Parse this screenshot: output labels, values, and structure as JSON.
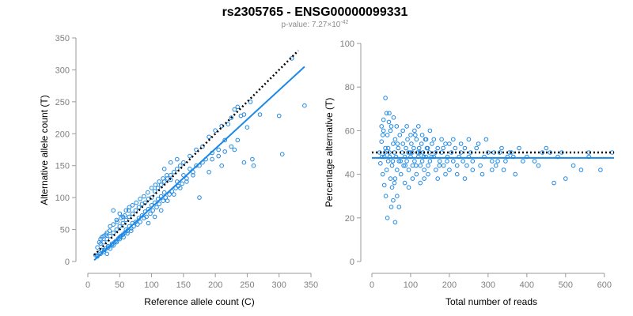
{
  "figure": {
    "title": "rs2305765 - ENSG00000099331",
    "subtitle_prefix": "p-value: 7.27×10",
    "subtitle_exponent": "-42"
  },
  "colors": {
    "points": "#1e88e5",
    "fit": "#1e88e5",
    "reference": "#000000",
    "axis": "#9a9a9a"
  },
  "chart_data": [
    {
      "type": "scatter",
      "name": "allele-count",
      "xlabel": "Reference allele count (C)",
      "ylabel": "Alternative allele count (T)",
      "xlim": [
        0,
        350
      ],
      "ylim": [
        0,
        350
      ],
      "xticks": [
        0,
        50,
        100,
        150,
        200,
        250,
        300,
        350
      ],
      "yticks": [
        0,
        50,
        100,
        150,
        200,
        250,
        300,
        350
      ],
      "regression_line": {
        "x": [
          10,
          340
        ],
        "y": [
          2,
          305
        ]
      },
      "reference_line": {
        "x": [
          10,
          330
        ],
        "y": [
          10,
          330
        ],
        "style": "dotted"
      },
      "points": [
        [
          12,
          10
        ],
        [
          15,
          22
        ],
        [
          18,
          14
        ],
        [
          20,
          28
        ],
        [
          22,
          18
        ],
        [
          25,
          30
        ],
        [
          28,
          20
        ],
        [
          30,
          35
        ],
        [
          32,
          24
        ],
        [
          35,
          40
        ],
        [
          38,
          28
        ],
        [
          40,
          45
        ],
        [
          42,
          30
        ],
        [
          45,
          50
        ],
        [
          48,
          36
        ],
        [
          50,
          55
        ],
        [
          52,
          40
        ],
        [
          55,
          60
        ],
        [
          58,
          45
        ],
        [
          60,
          65
        ],
        [
          62,
          48
        ],
        [
          65,
          70
        ],
        [
          68,
          52
        ],
        [
          70,
          75
        ],
        [
          72,
          55
        ],
        [
          75,
          80
        ],
        [
          78,
          58
        ],
        [
          80,
          85
        ],
        [
          82,
          62
        ],
        [
          85,
          90
        ],
        [
          88,
          68
        ],
        [
          90,
          92
        ],
        [
          92,
          70
        ],
        [
          95,
          98
        ],
        [
          98,
          75
        ],
        [
          100,
          100
        ],
        [
          102,
          80
        ],
        [
          105,
          110
        ],
        [
          108,
          85
        ],
        [
          110,
          115
        ],
        [
          112,
          90
        ],
        [
          115,
          120
        ],
        [
          118,
          95
        ],
        [
          120,
          125
        ],
        [
          122,
          100
        ],
        [
          125,
          130
        ],
        [
          128,
          105
        ],
        [
          130,
          135
        ],
        [
          132,
          110
        ],
        [
          135,
          140
        ],
        [
          138,
          115
        ],
        [
          140,
          145
        ],
        [
          142,
          118
        ],
        [
          145,
          150
        ],
        [
          148,
          122
        ],
        [
          150,
          155
        ],
        [
          155,
          130
        ],
        [
          160,
          165
        ],
        [
          165,
          140
        ],
        [
          170,
          175
        ],
        [
          175,
          150
        ],
        [
          180,
          180
        ],
        [
          185,
          160
        ],
        [
          190,
          195
        ],
        [
          195,
          170
        ],
        [
          200,
          205
        ],
        [
          205,
          175
        ],
        [
          210,
          212
        ],
        [
          215,
          190
        ],
        [
          220,
          215
        ],
        [
          225,
          225
        ],
        [
          230,
          238
        ],
        [
          235,
          242
        ],
        [
          240,
          228
        ],
        [
          245,
          230
        ],
        [
          250,
          210
        ],
        [
          255,
          250
        ],
        [
          260,
          150
        ],
        [
          270,
          230
        ],
        [
          300,
          228
        ],
        [
          305,
          168
        ],
        [
          320,
          318
        ],
        [
          340,
          244
        ],
        [
          230,
          175
        ],
        [
          245,
          155
        ],
        [
          258,
          160
        ],
        [
          210,
          150
        ],
        [
          175,
          100
        ],
        [
          190,
          140
        ],
        [
          165,
          135
        ],
        [
          25,
          15
        ],
        [
          30,
          12
        ],
        [
          35,
          20
        ],
        [
          40,
          25
        ],
        [
          45,
          30
        ],
        [
          50,
          38
        ],
        [
          55,
          42
        ],
        [
          60,
          50
        ],
        [
          65,
          55
        ],
        [
          70,
          60
        ],
        [
          75,
          62
        ],
        [
          80,
          68
        ],
        [
          85,
          72
        ],
        [
          90,
          78
        ],
        [
          95,
          82
        ],
        [
          100,
          88
        ],
        [
          105,
          92
        ],
        [
          110,
          98
        ],
        [
          115,
          102
        ],
        [
          120,
          108
        ],
        [
          18,
          30
        ],
        [
          22,
          38
        ],
        [
          28,
          42
        ],
        [
          34,
          48
        ],
        [
          40,
          58
        ],
        [
          46,
          62
        ],
        [
          52,
          68
        ],
        [
          58,
          72
        ],
        [
          64,
          80
        ],
        [
          70,
          88
        ],
        [
          76,
          92
        ],
        [
          82,
          98
        ],
        [
          88,
          102
        ],
        [
          94,
          108
        ],
        [
          100,
          115
        ],
        [
          106,
          120
        ],
        [
          112,
          125
        ],
        [
          118,
          130
        ],
        [
          124,
          135
        ],
        [
          130,
          128
        ],
        [
          15,
          8
        ],
        [
          20,
          12
        ],
        [
          26,
          18
        ],
        [
          32,
          22
        ],
        [
          38,
          26
        ],
        [
          44,
          32
        ],
        [
          50,
          35
        ],
        [
          56,
          38
        ],
        [
          62,
          44
        ],
        [
          68,
          48
        ],
        [
          140,
          125
        ],
        [
          150,
          135
        ],
        [
          160,
          145
        ],
        [
          170,
          150
        ],
        [
          180,
          155
        ],
        [
          195,
          160
        ],
        [
          205,
          165
        ],
        [
          215,
          172
        ],
        [
          225,
          180
        ],
        [
          235,
          190
        ],
        [
          40,
          80
        ],
        [
          50,
          75
        ],
        [
          60,
          80
        ],
        [
          45,
          65
        ],
        [
          35,
          55
        ],
        [
          30,
          45
        ],
        [
          25,
          40
        ],
        [
          20,
          35
        ],
        [
          55,
          70
        ],
        [
          65,
          85
        ],
        [
          95,
          60
        ],
        [
          105,
          70
        ],
        [
          115,
          80
        ],
        [
          125,
          95
        ],
        [
          135,
          105
        ],
        [
          145,
          115
        ],
        [
          155,
          125
        ],
        [
          120,
          145
        ],
        [
          130,
          155
        ],
        [
          140,
          160
        ]
      ]
    },
    {
      "type": "scatter",
      "name": "percentage-alternative",
      "xlabel": "Total number of reads",
      "ylabel": "Percentage alternative (T)",
      "xlim": [
        0,
        625
      ],
      "ylim": [
        0,
        100
      ],
      "xticks": [
        0,
        100,
        200,
        300,
        400,
        500,
        600
      ],
      "yticks": [
        0,
        20,
        40,
        60,
        80,
        100
      ],
      "fit_line": {
        "x": [
          0,
          625
        ],
        "y": [
          47.5,
          47.5
        ]
      },
      "reference_line": {
        "x": [
          0,
          625
        ],
        "y": [
          50,
          50
        ],
        "style": "dotted"
      },
      "points": [
        [
          20,
          50
        ],
        [
          22,
          45
        ],
        [
          25,
          55
        ],
        [
          28,
          40
        ],
        [
          30,
          60
        ],
        [
          32,
          48
        ],
        [
          35,
          52
        ],
        [
          38,
          42
        ],
        [
          40,
          58
        ],
        [
          42,
          46
        ],
        [
          45,
          50
        ],
        [
          48,
          38
        ],
        [
          50,
          62
        ],
        [
          52,
          44
        ],
        [
          55,
          54
        ],
        [
          58,
          36
        ],
        [
          60,
          56
        ],
        [
          62,
          48
        ],
        [
          65,
          42
        ],
        [
          68,
          52
        ],
        [
          70,
          46
        ],
        [
          72,
          58
        ],
        [
          75,
          40
        ],
        [
          78,
          50
        ],
        [
          80,
          54
        ],
        [
          82,
          44
        ],
        [
          85,
          48
        ],
        [
          88,
          52
        ],
        [
          90,
          46
        ],
        [
          92,
          56
        ],
        [
          95,
          42
        ],
        [
          98,
          50
        ],
        [
          100,
          48
        ],
        [
          102,
          54
        ],
        [
          105,
          44
        ],
        [
          108,
          52
        ],
        [
          110,
          46
        ],
        [
          112,
          58
        ],
        [
          115,
          40
        ],
        [
          118,
          50
        ],
        [
          120,
          48
        ],
        [
          122,
          52
        ],
        [
          125,
          44
        ],
        [
          128,
          54
        ],
        [
          130,
          46
        ],
        [
          132,
          50
        ],
        [
          135,
          42
        ],
        [
          138,
          56
        ],
        [
          140,
          48
        ],
        [
          142,
          52
        ],
        [
          145,
          44
        ],
        [
          148,
          50
        ],
        [
          150,
          46
        ],
        [
          155,
          54
        ],
        [
          160,
          48
        ],
        [
          165,
          42
        ],
        [
          170,
          52
        ],
        [
          175,
          46
        ],
        [
          180,
          50
        ],
        [
          185,
          44
        ],
        [
          190,
          54
        ],
        [
          195,
          48
        ],
        [
          200,
          42
        ],
        [
          205,
          50
        ],
        [
          210,
          46
        ],
        [
          215,
          52
        ],
        [
          220,
          44
        ],
        [
          225,
          48
        ],
        [
          230,
          50
        ],
        [
          235,
          46
        ],
        [
          240,
          52
        ],
        [
          245,
          44
        ],
        [
          250,
          48
        ],
        [
          255,
          50
        ],
        [
          260,
          46
        ],
        [
          270,
          52
        ],
        [
          280,
          44
        ],
        [
          290,
          48
        ],
        [
          300,
          50
        ],
        [
          310,
          46
        ],
        [
          320,
          44
        ],
        [
          330,
          50
        ],
        [
          340,
          42
        ],
        [
          350,
          48
        ],
        [
          360,
          50
        ],
        [
          370,
          40
        ],
        [
          380,
          52
        ],
        [
          390,
          46
        ],
        [
          400,
          48
        ],
        [
          420,
          46
        ],
        [
          430,
          44
        ],
        [
          450,
          52
        ],
        [
          460,
          50
        ],
        [
          480,
          48
        ],
        [
          500,
          38
        ],
        [
          520,
          44
        ],
        [
          540,
          42
        ],
        [
          560,
          48
        ],
        [
          590,
          42
        ],
        [
          620,
          50
        ],
        [
          35,
          75
        ],
        [
          45,
          68
        ],
        [
          30,
          65
        ],
        [
          55,
          28
        ],
        [
          60,
          18
        ],
        [
          40,
          20
        ],
        [
          50,
          25
        ],
        [
          65,
          30
        ],
        [
          70,
          25
        ],
        [
          38,
          68
        ],
        [
          25,
          62
        ],
        [
          28,
          58
        ],
        [
          32,
          35
        ],
        [
          36,
          30
        ],
        [
          44,
          64
        ],
        [
          48,
          60
        ],
        [
          52,
          34
        ],
        [
          56,
          66
        ],
        [
          60,
          38
        ],
        [
          64,
          62
        ],
        [
          80,
          60
        ],
        [
          85,
          36
        ],
        [
          90,
          62
        ],
        [
          95,
          34
        ],
        [
          100,
          58
        ],
        [
          105,
          38
        ],
        [
          110,
          60
        ],
        [
          115,
          56
        ],
        [
          120,
          62
        ],
        [
          125,
          36
        ],
        [
          130,
          58
        ],
        [
          135,
          38
        ],
        [
          140,
          56
        ],
        [
          145,
          40
        ],
        [
          150,
          60
        ],
        [
          160,
          56
        ],
        [
          170,
          38
        ],
        [
          180,
          56
        ],
        [
          190,
          40
        ],
        [
          200,
          54
        ],
        [
          26,
          48
        ],
        [
          34,
          50
        ],
        [
          42,
          52
        ],
        [
          46,
          48
        ],
        [
          54,
          46
        ],
        [
          58,
          50
        ],
        [
          66,
          54
        ],
        [
          74,
          46
        ],
        [
          86,
          44
        ],
        [
          94,
          50
        ],
        [
          104,
          50
        ],
        [
          114,
          44
        ],
        [
          124,
          50
        ],
        [
          134,
          48
        ],
        [
          144,
          52
        ],
        [
          154,
          48
        ],
        [
          164,
          50
        ],
        [
          174,
          44
        ],
        [
          184,
          52
        ],
        [
          194,
          46
        ],
        [
          210,
          56
        ],
        [
          220,
          40
        ],
        [
          230,
          54
        ],
        [
          240,
          38
        ],
        [
          250,
          56
        ],
        [
          260,
          42
        ],
        [
          275,
          54
        ],
        [
          285,
          40
        ],
        [
          295,
          56
        ],
        [
          310,
          42
        ],
        [
          315,
          50
        ],
        [
          325,
          46
        ],
        [
          335,
          52
        ],
        [
          345,
          46
        ],
        [
          355,
          50
        ],
        [
          365,
          48
        ],
        [
          440,
          50
        ],
        [
          470,
          36
        ],
        [
          490,
          50
        ],
        [
          560,
          50
        ]
      ]
    }
  ]
}
